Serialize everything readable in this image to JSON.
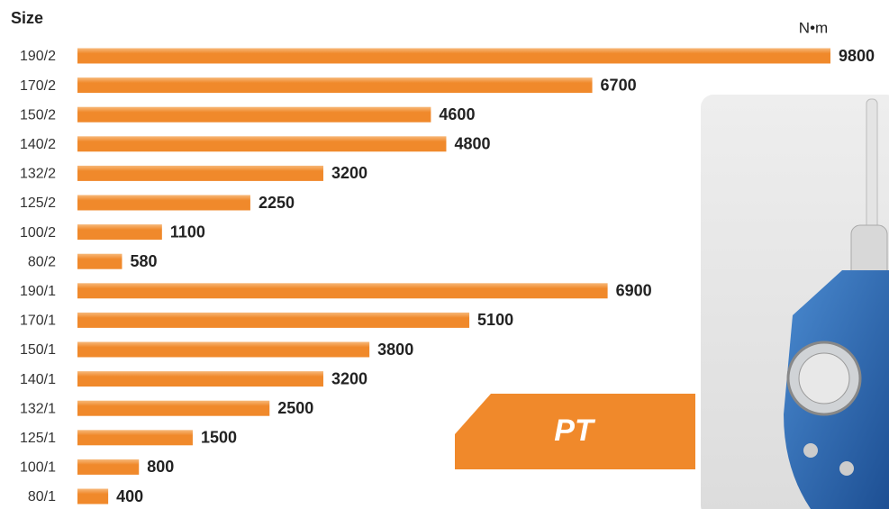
{
  "chart_data": {
    "type": "bar",
    "orientation": "horizontal",
    "y_label": "Size",
    "unit_label": "N•m",
    "badge": "PT",
    "color": "#f0892b",
    "categories": [
      "190/2",
      "170/2",
      "150/2",
      "140/2",
      "132/2",
      "125/2",
      "100/2",
      "80/2",
      "190/1",
      "170/1",
      "150/1",
      "140/1",
      "132/1",
      "125/1",
      "100/1",
      "80/1"
    ],
    "values": [
      9800,
      6700,
      4600,
      4800,
      3200,
      2250,
      1100,
      580,
      6900,
      5100,
      3800,
      3200,
      2500,
      1500,
      800,
      400
    ]
  }
}
